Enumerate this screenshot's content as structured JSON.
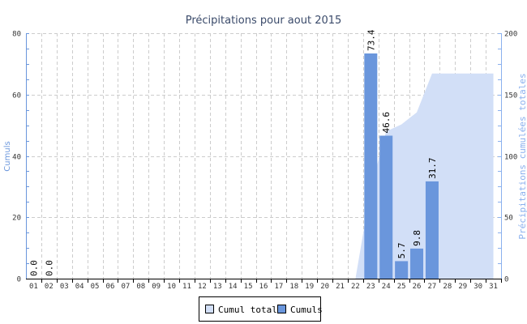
{
  "chart_data": {
    "type": "bar",
    "title": "Précipitations pour aout 2015",
    "ylabel": "Cumuls",
    "y2label": "Précipitations cumulées totales",
    "ylim": [
      0,
      80
    ],
    "y2lim": [
      0,
      200
    ],
    "yticks": [
      "0",
      "20",
      "40",
      "60",
      "80"
    ],
    "y2ticks": [
      "0",
      "50",
      "100",
      "150",
      "200"
    ],
    "grid": true,
    "legend_position": "bottom",
    "categories": [
      "01",
      "02",
      "03",
      "04",
      "05",
      "06",
      "07",
      "08",
      "09",
      "10",
      "11",
      "12",
      "13",
      "14",
      "15",
      "16",
      "17",
      "18",
      "19",
      "20",
      "21",
      "22",
      "23",
      "24",
      "25",
      "26",
      "27",
      "28",
      "29",
      "30",
      "31"
    ],
    "series": [
      {
        "name": "Cumuls",
        "type": "bar",
        "axis": "left",
        "color": "#6a96dc",
        "values": [
          0.0,
          0.0,
          null,
          null,
          null,
          null,
          null,
          null,
          null,
          null,
          null,
          null,
          null,
          null,
          null,
          null,
          null,
          null,
          null,
          null,
          null,
          null,
          73.4,
          46.6,
          5.7,
          9.8,
          31.7,
          null,
          null,
          null,
          null
        ],
        "labels": {
          "01": "0.0",
          "02": "0.0",
          "23": "73.4",
          "24": "46.6",
          "25": "5.7",
          "26": "9.8",
          "27": "31.7"
        }
      },
      {
        "name": "Cumul total",
        "type": "area",
        "axis": "right",
        "color": "#d2dff7",
        "values": [
          null,
          null,
          null,
          null,
          null,
          null,
          null,
          null,
          null,
          null,
          null,
          null,
          null,
          null,
          null,
          null,
          null,
          null,
          null,
          null,
          null,
          0,
          73.4,
          120.0,
          125.7,
          135.5,
          167.2,
          167.2,
          167.2,
          167.2,
          167.2
        ]
      }
    ]
  }
}
